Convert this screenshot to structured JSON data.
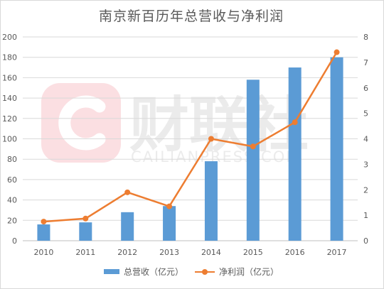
{
  "chart_data": {
    "type": "bar",
    "title": "南京新百历年总营收与净利润",
    "categories": [
      "2010",
      "2011",
      "2012",
      "2013",
      "2014",
      "2015",
      "2016",
      "2017"
    ],
    "series": [
      {
        "name": "总营收（亿元）",
        "type": "bar",
        "axis": "left",
        "color": "#5b9bd5",
        "values": [
          16,
          18,
          28,
          34,
          78,
          158,
          170,
          180
        ]
      },
      {
        "name": "净利润（亿元）",
        "type": "line",
        "axis": "right",
        "color": "#ed7d31",
        "values": [
          0.75,
          0.87,
          1.9,
          1.35,
          4.0,
          3.7,
          4.65,
          7.4
        ]
      }
    ],
    "ylim_left": [
      0,
      200
    ],
    "yticks_left": [
      0,
      20,
      40,
      60,
      80,
      100,
      120,
      140,
      160,
      180,
      200
    ],
    "ylim_right": [
      0,
      8
    ],
    "yticks_right": [
      0,
      1,
      2,
      3,
      4,
      5,
      6,
      7,
      8
    ],
    "grid": true,
    "legend_position": "bottom"
  },
  "watermark": {
    "text": "财联社",
    "subtext": "CAILIANPRESS.COM"
  }
}
